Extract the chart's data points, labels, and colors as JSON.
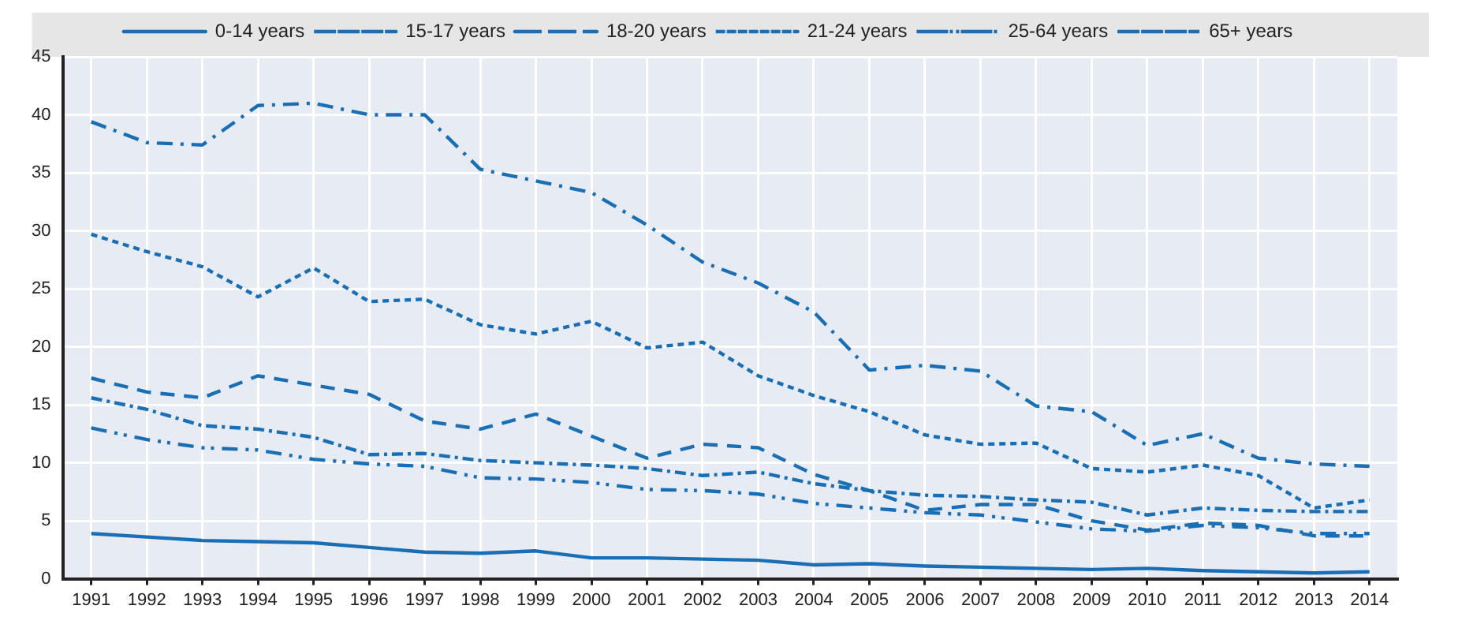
{
  "chart_data": {
    "type": "line",
    "categories": [
      "1991",
      "1992",
      "1993",
      "1994",
      "1995",
      "1996",
      "1997",
      "1998",
      "1999",
      "2000",
      "2001",
      "2002",
      "2003",
      "2004",
      "2005",
      "2006",
      "2007",
      "2008",
      "2009",
      "2010",
      "2011",
      "2012",
      "2013",
      "2014"
    ],
    "series": [
      {
        "name": "0-14 years",
        "color": "#1a6fb4",
        "line_style": "solid",
        "values": [
          3.9,
          3.6,
          3.3,
          3.2,
          3.1,
          2.7,
          2.3,
          2.2,
          2.4,
          1.8,
          1.8,
          1.7,
          1.6,
          1.2,
          1.3,
          1.1,
          1.0,
          0.9,
          0.8,
          0.9,
          0.7,
          0.6,
          0.5,
          0.6
        ]
      },
      {
        "name": "15-17 years",
        "color": "#1a6fb4",
        "line_style": "dashed",
        "values": [
          17.3,
          16.1,
          15.6,
          17.5,
          16.7,
          15.9,
          13.6,
          12.9,
          14.2,
          12.3,
          10.4,
          11.6,
          11.3,
          9.0,
          7.6,
          5.9,
          6.4,
          6.4,
          5.0,
          4.2,
          4.8,
          4.6,
          3.7,
          3.7
        ]
      },
      {
        "name": "18-20 years",
        "color": "#1a6fb4",
        "line_style": "dashed",
        "values": [
          39.4,
          37.6,
          37.4,
          40.8,
          41.0,
          40.0,
          40.0,
          35.3,
          34.3,
          33.3,
          30.5,
          27.3,
          25.5,
          23.0,
          18.0,
          18.4,
          17.9,
          14.9,
          14.4,
          11.5,
          12.5,
          10.4,
          9.9,
          9.7
        ]
      },
      {
        "name": "21-24 years",
        "color": "#1a6fb4",
        "line_style": "dotted",
        "values": [
          29.7,
          28.2,
          26.9,
          24.3,
          26.8,
          23.9,
          24.1,
          21.9,
          21.1,
          22.2,
          19.9,
          20.4,
          17.5,
          15.8,
          14.4,
          12.4,
          11.6,
          11.7,
          9.5,
          9.2,
          9.8,
          8.9,
          6.1,
          6.8
        ]
      },
      {
        "name": "25-64 years",
        "color": "#1a6fb4",
        "line_style": "dashed",
        "values": [
          13.0,
          12.0,
          11.3,
          11.1,
          10.3,
          9.9,
          9.7,
          8.7,
          8.6,
          8.3,
          7.7,
          7.6,
          7.3,
          6.5,
          6.1,
          5.7,
          5.5,
          4.9,
          4.3,
          4.1,
          4.6,
          4.4,
          3.9,
          3.9
        ]
      },
      {
        "name": "65+ years",
        "color": "#1a6fb4",
        "line_style": "dashed",
        "values": [
          15.6,
          14.6,
          13.2,
          12.9,
          12.2,
          10.7,
          10.8,
          10.2,
          10.0,
          9.8,
          9.5,
          8.9,
          9.2,
          8.2,
          7.6,
          7.2,
          7.1,
          6.8,
          6.6,
          5.5,
          6.1,
          5.9,
          5.8,
          5.8
        ]
      }
    ],
    "ylim": [
      0,
      45
    ],
    "yticks": [
      0,
      5,
      10,
      15,
      20,
      25,
      30,
      35,
      40,
      45
    ],
    "grid": true,
    "legend": "top"
  }
}
